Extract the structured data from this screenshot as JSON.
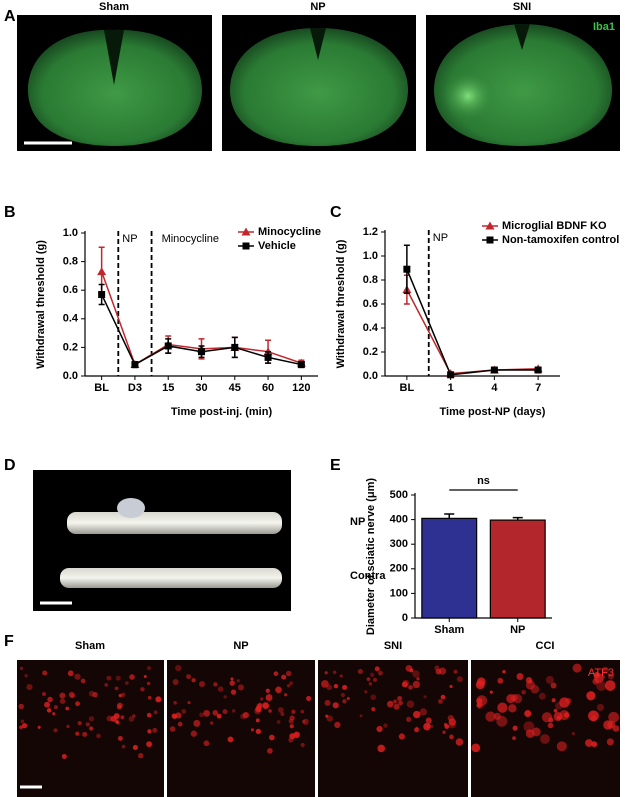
{
  "panel_letters": [
    "A",
    "B",
    "C",
    "D",
    "E",
    "F"
  ],
  "panel_a": {
    "labels": [
      "Sham",
      "NP",
      "SNI"
    ],
    "stain": "Iba1"
  },
  "panel_d": {
    "labels": [
      "NP",
      "Contra"
    ]
  },
  "panel_f": {
    "labels": [
      "Sham",
      "NP",
      "SNI",
      "CCI"
    ],
    "stain": "ATF3"
  },
  "chart_data": [
    {
      "type": "line",
      "y_label": "Withdrawal threshold (g)",
      "x_label": "Time post-inj. (min)",
      "categories": [
        "BL",
        "D3",
        "15",
        "30",
        "45",
        "60",
        "120"
      ],
      "annotations": [
        "NP",
        "Minocycline"
      ],
      "ylim": [
        0,
        1.0
      ],
      "yticks": [
        {
          "value": 0,
          "label": "0.0"
        },
        0.2,
        0.4,
        0.6,
        0.8,
        {
          "value": 1.0,
          "label": "1.0"
        }
      ],
      "series": [
        {
          "name": "Minocycline",
          "color": "#c1272d",
          "marker": "triangle",
          "values": [
            0.73,
            0.08,
            0.22,
            0.19,
            0.2,
            0.17,
            0.09
          ],
          "errors": [
            0.17,
            0.02,
            0.06,
            0.07,
            0.07,
            0.08,
            0.02
          ]
        },
        {
          "name": "Vehicle",
          "color": "#000000",
          "marker": "square",
          "values": [
            0.57,
            0.08,
            0.21,
            0.17,
            0.2,
            0.13,
            0.08
          ],
          "errors": [
            0.07,
            0.02,
            0.05,
            0.04,
            0.07,
            0.04,
            0.02
          ]
        }
      ]
    },
    {
      "type": "line",
      "y_label": "Withdrawal threshold (g)",
      "x_label": "Time post-NP (days)",
      "categories": [
        "BL",
        "1",
        "4",
        "7"
      ],
      "annotations": [
        "NP"
      ],
      "ylim": [
        0,
        1.2
      ],
      "yticks": [
        {
          "value": 0,
          "label": "0.0"
        },
        0.2,
        0.4,
        0.6,
        0.8,
        {
          "value": 1.0,
          "label": "1.0"
        },
        1.2
      ],
      "series": [
        {
          "name": "Microglial BDNF KO",
          "color": "#c1272d",
          "marker": "triangle",
          "values": [
            0.72,
            0.02,
            0.05,
            0.06
          ],
          "errors": [
            0.12,
            0.01,
            0.01,
            0.01
          ]
        },
        {
          "name": "Non-tamoxifen control",
          "color": "#000000",
          "marker": "square",
          "values": [
            0.89,
            0.01,
            0.05,
            0.05
          ],
          "errors": [
            0.2,
            0.01,
            0.01,
            0.01
          ]
        }
      ]
    },
    {
      "type": "bar",
      "y_label": "Diameter of sciatic nerve (μm)",
      "categories": [
        "Sham",
        "NP"
      ],
      "annotations": [
        "ns"
      ],
      "ylim": [
        0,
        500
      ],
      "yticks": [
        0,
        100,
        200,
        300,
        400,
        500
      ],
      "colors": [
        "#2e3192",
        "#b3262b"
      ],
      "values": [
        405,
        398
      ],
      "errors": [
        18,
        10
      ]
    }
  ]
}
